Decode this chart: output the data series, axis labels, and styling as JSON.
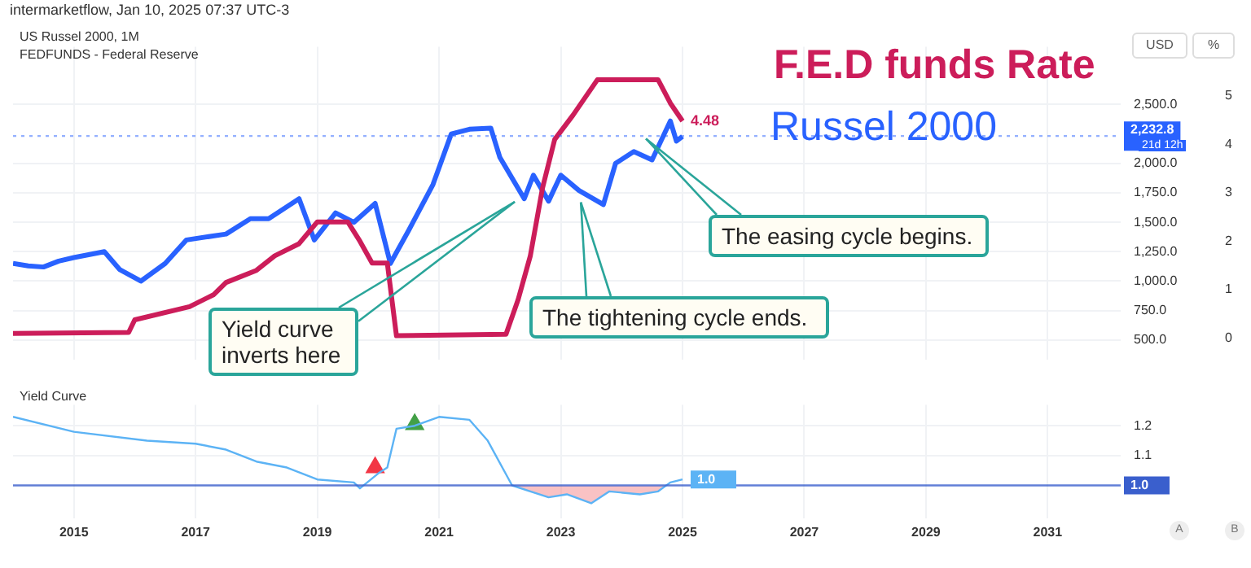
{
  "chart_data": [
    {
      "type": "line",
      "ylabel": "USD",
      "y2label": "%",
      "xlim": [
        2014.0,
        2032.2
      ],
      "xticks": [
        2015,
        2017,
        2019,
        2021,
        2023,
        2025,
        2027,
        2029,
        2031
      ],
      "ylim": [
        330,
        2990
      ],
      "yticks": [
        {
          "value": 500,
          "label": "500.0"
        },
        {
          "value": 750,
          "label": "750.0"
        },
        {
          "value": 1000,
          "label": "1,000.0"
        },
        {
          "value": 1250,
          "label": "1,250.0"
        },
        {
          "value": 1500,
          "label": "1,500.0"
        },
        {
          "value": 1750,
          "label": "1,750.0"
        },
        {
          "value": 2000,
          "label": "2,000.0"
        },
        {
          "value": 2500,
          "label": "2,500.0"
        }
      ],
      "y2lim": [
        -0.45,
        6.01
      ],
      "y2ticks": [
        0,
        1,
        2,
        3,
        4,
        5
      ],
      "grid": true,
      "legend": "top right",
      "tick_labels": "y",
      "marker": "none",
      "annotations": [
        "intermarketflow, Jan 10, 2025 07:37 UTC-3",
        "US Russel 2000, 1M",
        "FEDFUNDS - Federal Reserve",
        "Yield curve inverts here",
        {
          "text": "The tightening cycle ends.",
          "x": 2023.33,
          "y": 1670
        },
        {
          "text": "The easing cycle begins.",
          "x": 2024.4,
          "y": 2210
        },
        "21d 12h"
      ],
      "ref_lines": [
        {
          "axis": "y",
          "value": 2232.8,
          "label": "2,232.8",
          "color": "#2962ff",
          "line_style": "dotted"
        }
      ],
      "series": [
        {
          "name": "F.E.D funds Rate",
          "color": "#cc1d5a",
          "axis": "y2",
          "x": [
            2014.0,
            2015.9,
            2016.0,
            2016.9,
            2017.3,
            2017.5,
            2018.0,
            2018.3,
            2018.7,
            2019.0,
            2019.5,
            2019.7,
            2019.9,
            2020.15,
            2020.3,
            2022.1,
            2022.3,
            2022.5,
            2022.7,
            2022.9,
            2023.2,
            2023.6,
            2024.6,
            2024.8,
            2025.0
          ],
          "values": [
            0.1,
            0.12,
            0.38,
            0.65,
            0.9,
            1.15,
            1.4,
            1.7,
            1.95,
            2.4,
            2.4,
            2.0,
            1.55,
            1.55,
            0.05,
            0.08,
            0.8,
            1.7,
            3.1,
            4.1,
            4.6,
            5.33,
            5.33,
            4.85,
            4.48
          ],
          "value_labels": [
            null,
            null,
            null,
            null,
            null,
            null,
            null,
            null,
            null,
            null,
            null,
            null,
            null,
            null,
            null,
            null,
            null,
            null,
            null,
            null,
            null,
            null,
            null,
            null,
            "4.48"
          ]
        },
        {
          "name": "Russel 2000",
          "color": "#2962ff",
          "x": [
            2014.0,
            2014.25,
            2014.5,
            2014.75,
            2015.0,
            2015.5,
            2015.75,
            2016.1,
            2016.5,
            2016.85,
            2017.5,
            2017.9,
            2018.2,
            2018.7,
            2018.95,
            2019.3,
            2019.6,
            2019.95,
            2020.2,
            2020.5,
            2020.9,
            2021.2,
            2021.5,
            2021.85,
            2022.0,
            2022.4,
            2022.55,
            2022.8,
            2023.0,
            2023.3,
            2023.7,
            2023.9,
            2024.2,
            2024.5,
            2024.8,
            2024.9,
            2025.0
          ],
          "values": [
            1150,
            1130,
            1120,
            1170,
            1200,
            1250,
            1100,
            1000,
            1150,
            1350,
            1400,
            1530,
            1530,
            1700,
            1350,
            1580,
            1500,
            1660,
            1150,
            1430,
            1820,
            2250,
            2290,
            2300,
            2050,
            1700,
            1900,
            1680,
            1900,
            1770,
            1650,
            2000,
            2100,
            2030,
            2360,
            2190,
            2230
          ]
        }
      ]
    },
    {
      "type": "line",
      "title": "Yield Curve",
      "xlim": [
        2014.0,
        2032.2
      ],
      "xticks": [
        2015,
        2017,
        2019,
        2021,
        2023,
        2025,
        2027,
        2029,
        2031
      ],
      "ylim": [
        0.89,
        1.27
      ],
      "yticks": [
        1.1,
        1.2
      ],
      "grid": true,
      "marker": "none",
      "annotations": [
        "A",
        "B"
      ],
      "ref_lines": [
        {
          "axis": "y",
          "value": 1.0,
          "label": "1.0",
          "color": "#3a5fcd"
        }
      ],
      "series": [
        {
          "color": "#5cb3f5",
          "x": [
            2014.0,
            2015.0,
            2016.2,
            2017.0,
            2017.5,
            2018.0,
            2018.5,
            2019.0,
            2019.6,
            2019.7,
            2020.0,
            2020.15,
            2020.3,
            2020.6,
            2021.0,
            2021.5,
            2021.8,
            2022.2,
            2022.5,
            2022.8,
            2023.1,
            2023.5,
            2023.8,
            2024.3,
            2024.6,
            2024.8,
            2025.0
          ],
          "values": [
            1.23,
            1.18,
            1.15,
            1.14,
            1.12,
            1.08,
            1.06,
            1.02,
            1.01,
            0.99,
            1.04,
            1.06,
            1.19,
            1.2,
            1.23,
            1.22,
            1.15,
            1.0,
            0.98,
            0.96,
            0.97,
            0.94,
            0.98,
            0.97,
            0.98,
            1.01,
            1.02
          ],
          "value_labels": [
            null,
            null,
            null,
            null,
            null,
            null,
            null,
            null,
            null,
            null,
            null,
            null,
            null,
            null,
            null,
            null,
            null,
            null,
            null,
            null,
            null,
            null,
            null,
            null,
            null,
            null,
            "1.0"
          ]
        },
        {
          "type": "scatter",
          "color": "#f23645",
          "marker": "triangle",
          "x": [
            2019.95
          ],
          "values": [
            1.06
          ]
        },
        {
          "type": "scatter",
          "color": "#43a047",
          "marker": "triangle",
          "x": [
            2020.6
          ],
          "values": [
            1.205
          ]
        }
      ]
    }
  ]
}
